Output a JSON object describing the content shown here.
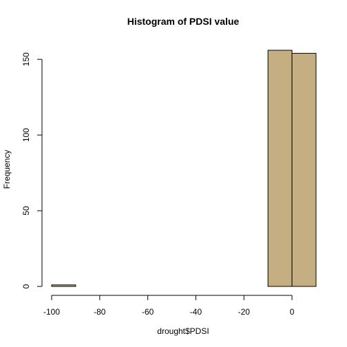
{
  "chart_data": {
    "type": "bar",
    "title": "Histogram of PDSI value",
    "xlabel": "drought$PDSI",
    "ylabel": "Frequency",
    "bins": [
      {
        "x0": -100,
        "x1": -90,
        "count": 1
      },
      {
        "x0": -90,
        "x1": -80,
        "count": 0
      },
      {
        "x0": -80,
        "x1": -70,
        "count": 0
      },
      {
        "x0": -70,
        "x1": -60,
        "count": 0
      },
      {
        "x0": -60,
        "x1": -50,
        "count": 0
      },
      {
        "x0": -50,
        "x1": -40,
        "count": 0
      },
      {
        "x0": -40,
        "x1": -30,
        "count": 0
      },
      {
        "x0": -30,
        "x1": -20,
        "count": 0
      },
      {
        "x0": -20,
        "x1": -10,
        "count": 0
      },
      {
        "x0": -10,
        "x1": 0,
        "count": 156
      },
      {
        "x0": 0,
        "x1": 10,
        "count": 154
      }
    ],
    "xlim": [
      -100,
      10
    ],
    "ylim": [
      0,
      156
    ],
    "x_ticks": [
      -100,
      -80,
      -60,
      -40,
      -20,
      0
    ],
    "y_ticks": [
      0,
      50,
      100,
      150
    ],
    "grid": false,
    "bar_color": "#c4ae82"
  }
}
